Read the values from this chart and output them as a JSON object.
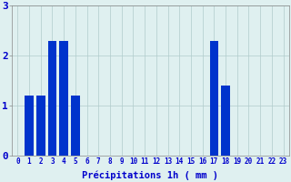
{
  "hours": [
    0,
    1,
    2,
    3,
    4,
    5,
    6,
    7,
    8,
    9,
    10,
    11,
    12,
    13,
    14,
    15,
    16,
    17,
    18,
    19,
    20,
    21,
    22,
    23
  ],
  "values": [
    0,
    1.2,
    1.2,
    2.3,
    2.3,
    1.2,
    0,
    0,
    0,
    0,
    0,
    0,
    0,
    0,
    0,
    0,
    0,
    2.3,
    1.4,
    0,
    0,
    0,
    0,
    0
  ],
  "bar_color": "#0033cc",
  "background_color": "#dff0f0",
  "grid_color": "#b0cccc",
  "text_color": "#0000cc",
  "xlabel": "Précipitations 1h ( mm )",
  "ylim": [
    0,
    3
  ],
  "yticks": [
    0,
    1,
    2,
    3
  ],
  "xlim": [
    -0.5,
    23.5
  ],
  "tick_fontsize": 5.5,
  "label_fontsize": 7.5
}
